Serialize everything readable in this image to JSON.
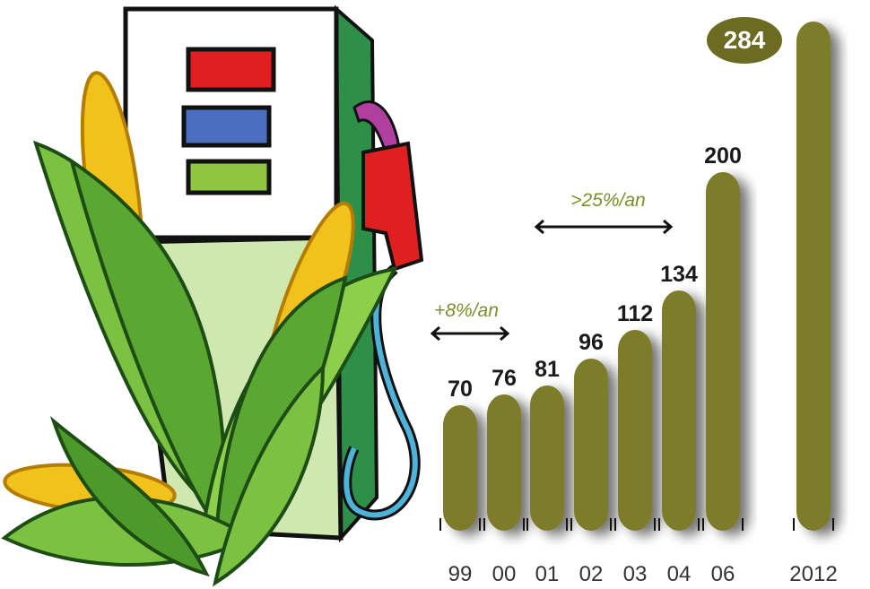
{
  "chart_data": {
    "type": "bar",
    "categories": [
      "99",
      "00",
      "01",
      "02",
      "03",
      "04",
      "06",
      "2012"
    ],
    "values": [
      70,
      76,
      81,
      96,
      112,
      134,
      200,
      284
    ],
    "color": "#7b7b2b",
    "annotations": [
      "+8%/an",
      ">25%/an"
    ]
  }
}
